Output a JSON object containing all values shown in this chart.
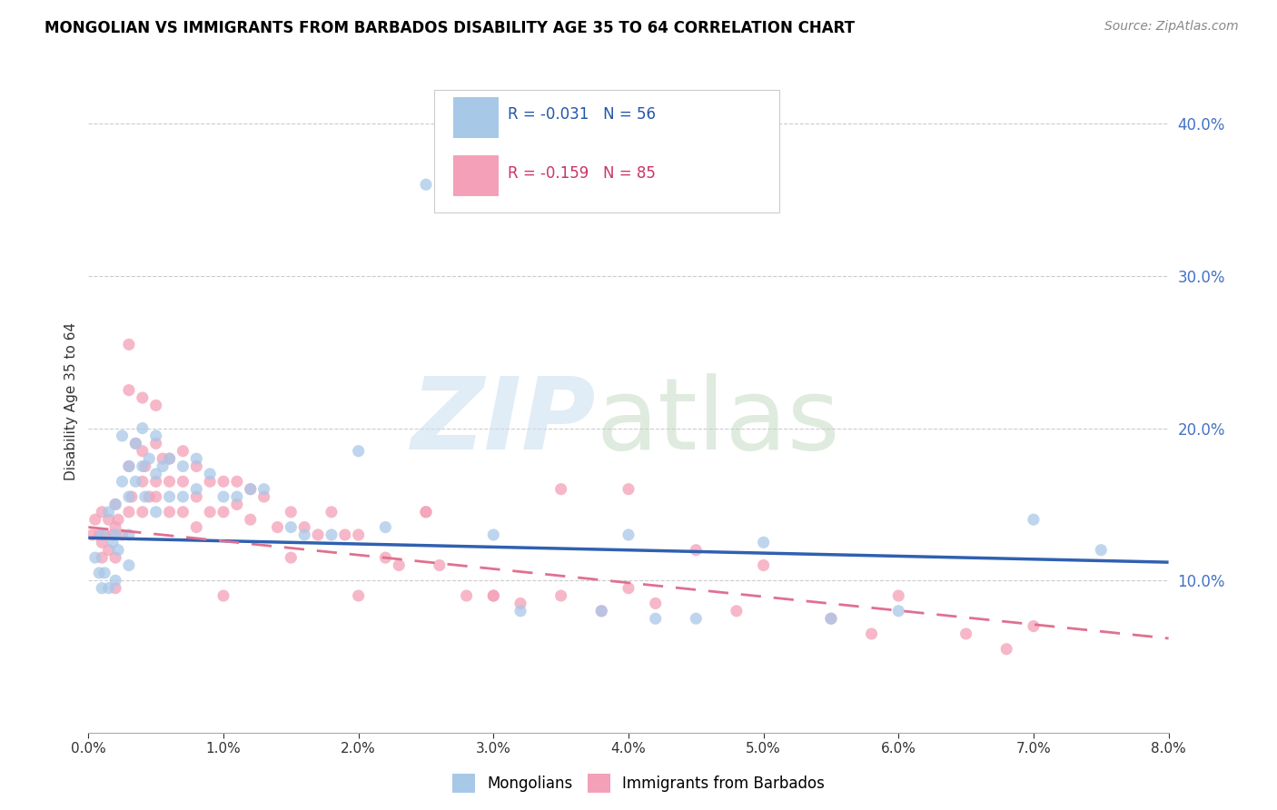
{
  "title": "MONGOLIAN VS IMMIGRANTS FROM BARBADOS DISABILITY AGE 35 TO 64 CORRELATION CHART",
  "source": "Source: ZipAtlas.com",
  "ylabel": "Disability Age 35 to 64",
  "right_yticks": [
    0.1,
    0.2,
    0.3,
    0.4
  ],
  "right_yticklabels": [
    "10.0%",
    "20.0%",
    "30.0%",
    "40.0%"
  ],
  "xmin": 0.0,
  "xmax": 0.08,
  "ymin": 0.0,
  "ymax": 0.435,
  "color_mongolian": "#a8c8e8",
  "color_barbados": "#f4a0b8",
  "color_mongolian_line": "#3060b0",
  "color_barbados_line": "#e07090",
  "mongolian_x": [
    0.0005,
    0.0008,
    0.001,
    0.001,
    0.0012,
    0.0015,
    0.0015,
    0.0018,
    0.002,
    0.002,
    0.002,
    0.0022,
    0.0025,
    0.0025,
    0.003,
    0.003,
    0.003,
    0.003,
    0.0035,
    0.0035,
    0.004,
    0.004,
    0.0042,
    0.0045,
    0.005,
    0.005,
    0.005,
    0.0055,
    0.006,
    0.006,
    0.007,
    0.007,
    0.008,
    0.008,
    0.009,
    0.01,
    0.011,
    0.012,
    0.013,
    0.015,
    0.016,
    0.018,
    0.02,
    0.022,
    0.025,
    0.03,
    0.032,
    0.038,
    0.04,
    0.042,
    0.045,
    0.05,
    0.055,
    0.06,
    0.07,
    0.075
  ],
  "mongolian_y": [
    0.115,
    0.105,
    0.13,
    0.095,
    0.105,
    0.145,
    0.095,
    0.125,
    0.15,
    0.13,
    0.1,
    0.12,
    0.195,
    0.165,
    0.175,
    0.155,
    0.13,
    0.11,
    0.19,
    0.165,
    0.2,
    0.175,
    0.155,
    0.18,
    0.195,
    0.17,
    0.145,
    0.175,
    0.18,
    0.155,
    0.175,
    0.155,
    0.18,
    0.16,
    0.17,
    0.155,
    0.155,
    0.16,
    0.16,
    0.135,
    0.13,
    0.13,
    0.185,
    0.135,
    0.36,
    0.13,
    0.08,
    0.08,
    0.13,
    0.075,
    0.075,
    0.125,
    0.075,
    0.08,
    0.14,
    0.12
  ],
  "barbados_x": [
    0.0003,
    0.0005,
    0.0008,
    0.001,
    0.001,
    0.001,
    0.0012,
    0.0015,
    0.0015,
    0.0018,
    0.002,
    0.002,
    0.002,
    0.0022,
    0.0025,
    0.003,
    0.003,
    0.003,
    0.003,
    0.0032,
    0.0035,
    0.004,
    0.004,
    0.004,
    0.004,
    0.0042,
    0.0045,
    0.005,
    0.005,
    0.005,
    0.0055,
    0.006,
    0.006,
    0.006,
    0.007,
    0.007,
    0.007,
    0.008,
    0.008,
    0.008,
    0.009,
    0.009,
    0.01,
    0.01,
    0.011,
    0.011,
    0.012,
    0.012,
    0.013,
    0.014,
    0.015,
    0.016,
    0.017,
    0.018,
    0.019,
    0.02,
    0.022,
    0.023,
    0.025,
    0.026,
    0.028,
    0.03,
    0.032,
    0.035,
    0.038,
    0.04,
    0.042,
    0.045,
    0.048,
    0.05,
    0.055,
    0.058,
    0.06,
    0.065,
    0.068,
    0.07,
    0.04,
    0.035,
    0.03,
    0.025,
    0.02,
    0.015,
    0.01,
    0.005,
    0.002
  ],
  "barbados_y": [
    0.13,
    0.14,
    0.13,
    0.145,
    0.125,
    0.115,
    0.13,
    0.14,
    0.12,
    0.13,
    0.15,
    0.135,
    0.115,
    0.14,
    0.13,
    0.255,
    0.225,
    0.175,
    0.145,
    0.155,
    0.19,
    0.22,
    0.185,
    0.165,
    0.145,
    0.175,
    0.155,
    0.215,
    0.19,
    0.165,
    0.18,
    0.18,
    0.165,
    0.145,
    0.185,
    0.165,
    0.145,
    0.175,
    0.155,
    0.135,
    0.165,
    0.145,
    0.165,
    0.145,
    0.165,
    0.15,
    0.16,
    0.14,
    0.155,
    0.135,
    0.145,
    0.135,
    0.13,
    0.145,
    0.13,
    0.09,
    0.115,
    0.11,
    0.145,
    0.11,
    0.09,
    0.09,
    0.085,
    0.09,
    0.08,
    0.095,
    0.085,
    0.12,
    0.08,
    0.11,
    0.075,
    0.065,
    0.09,
    0.065,
    0.055,
    0.07,
    0.16,
    0.16,
    0.09,
    0.145,
    0.13,
    0.115,
    0.09,
    0.155,
    0.095
  ]
}
